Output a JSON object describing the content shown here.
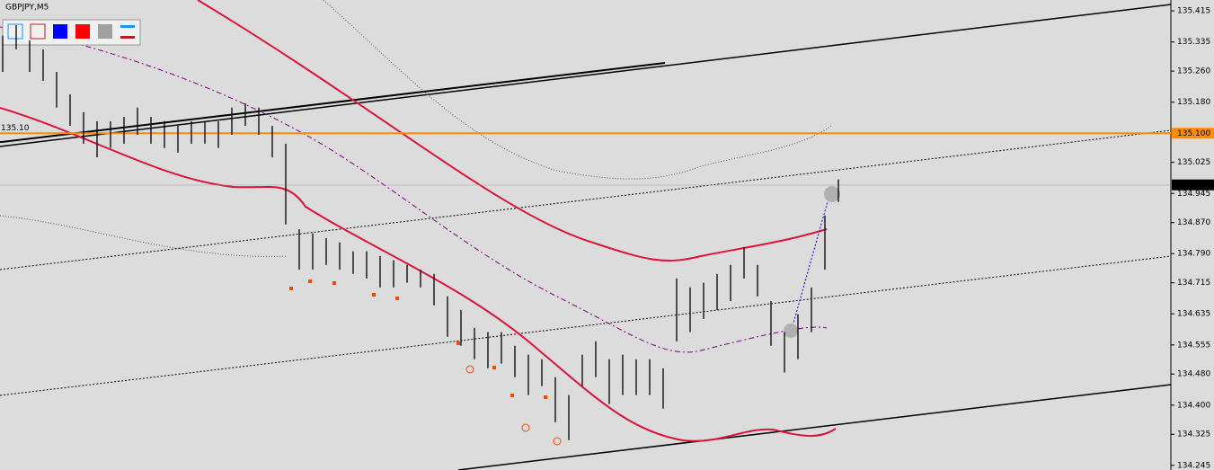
{
  "chart_data": {
    "type": "ohlc",
    "title": "GBPJPY,M5",
    "ylim": [
      134.233,
      135.443
    ],
    "yticks": [
      {
        "value": 135.415,
        "label": "135.415"
      },
      {
        "value": 135.335,
        "label": "135.335"
      },
      {
        "value": 135.26,
        "label": "135.260"
      },
      {
        "value": 135.18,
        "label": "135.180"
      },
      {
        "value": 135.025,
        "label": "135.025"
      },
      {
        "value": 134.945,
        "label": "134.945"
      },
      {
        "value": 134.87,
        "label": "134.870"
      },
      {
        "value": 134.79,
        "label": "134.790"
      },
      {
        "value": 134.715,
        "label": "134.715"
      },
      {
        "value": 134.635,
        "label": "134.635"
      },
      {
        "value": 134.555,
        "label": "134.555"
      },
      {
        "value": 134.48,
        "label": "134.480"
      },
      {
        "value": 134.4,
        "label": "134.400"
      },
      {
        "value": 134.325,
        "label": "134.325"
      },
      {
        "value": 134.245,
        "label": "134.245"
      }
    ],
    "level": {
      "value": 135.1,
      "label": "135.100",
      "left_label": "135.10",
      "color": "#ff8c00"
    },
    "current_price": {
      "value": 134.967,
      "label": "134.967"
    },
    "color": "#000000",
    "series": [
      {
        "name": "high",
        "values": [
          135.351,
          135.378,
          135.339,
          135.316,
          135.258,
          135.2,
          135.154,
          135.131,
          135.131,
          135.142,
          135.166,
          135.142,
          135.131,
          135.119,
          135.131,
          135.131,
          135.131,
          135.166,
          135.177,
          135.166,
          135.119,
          135.073,
          134.853,
          134.842,
          134.83,
          134.819,
          134.796,
          134.796,
          134.784,
          134.773,
          134.761,
          134.749,
          134.738,
          134.68,
          134.645,
          134.599,
          134.588,
          134.588,
          134.553,
          134.53,
          134.518,
          134.472,
          134.426,
          134.53,
          134.564,
          134.518,
          134.53,
          134.518,
          134.518,
          134.495,
          134.726,
          134.703,
          134.715,
          134.738,
          134.761,
          134.807,
          134.761,
          134.668,
          134.588,
          134.634,
          134.703,
          134.888,
          134.981
        ]
      },
      {
        "name": "low",
        "values": [
          135.258,
          135.316,
          135.258,
          135.235,
          135.166,
          135.119,
          135.073,
          135.038,
          135.062,
          135.073,
          135.096,
          135.073,
          135.062,
          135.05,
          135.073,
          135.073,
          135.062,
          135.096,
          135.119,
          135.096,
          135.038,
          134.865,
          134.749,
          134.749,
          134.761,
          134.749,
          134.738,
          134.726,
          134.703,
          134.703,
          134.715,
          134.703,
          134.657,
          134.576,
          134.553,
          134.518,
          134.495,
          134.507,
          134.472,
          134.426,
          134.449,
          134.356,
          134.31,
          134.449,
          134.472,
          134.403,
          134.426,
          134.426,
          134.426,
          134.391,
          134.564,
          134.588,
          134.622,
          134.645,
          134.668,
          134.726,
          134.68,
          134.553,
          134.484,
          134.518,
          134.588,
          134.749,
          134.923
        ]
      }
    ]
  }
}
